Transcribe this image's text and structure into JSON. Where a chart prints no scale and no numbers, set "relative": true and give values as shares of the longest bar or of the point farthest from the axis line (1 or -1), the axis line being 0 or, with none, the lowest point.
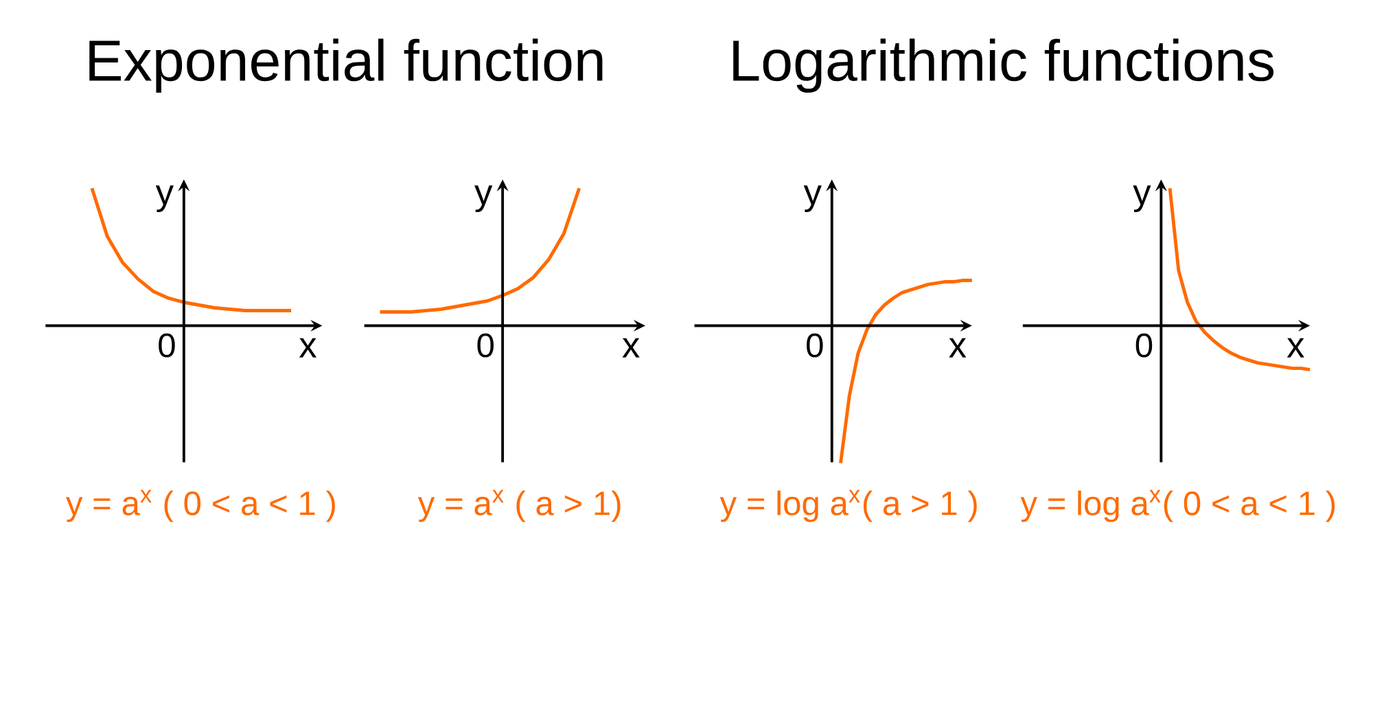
{
  "chart_data": [
    {
      "type": "line",
      "title": "Exponential function",
      "xlabel": "x",
      "ylabel": "y",
      "relative": true,
      "color": "#ff6a00",
      "categories": [
        null,
        null,
        null,
        null,
        null,
        null,
        null,
        null,
        null,
        null,
        null,
        null,
        null,
        null
      ],
      "values": [
        1,
        0.65,
        0.46,
        0.34,
        0.25,
        0.2,
        0.17,
        0.15,
        0.13,
        0.12,
        0.11,
        0.11,
        0.11,
        0.11
      ],
      "annotations": [
        "0",
        "y = a$^{x}$ ( 0 < a < 1 )"
      ]
    },
    {
      "type": "line",
      "xlabel": "x",
      "ylabel": "y",
      "relative": true,
      "color": "#ff6a00",
      "categories": [
        null,
        null,
        null,
        null,
        null,
        null,
        null,
        null,
        null,
        null,
        null,
        null,
        null,
        null
      ],
      "values": [
        0.1,
        0.1,
        0.1,
        0.11,
        0.12,
        0.14,
        0.16,
        0.18,
        0.22,
        0.27,
        0.35,
        0.48,
        0.67,
        1
      ],
      "annotations": [
        "0",
        "y = a$^{x}$ ( a > 1)"
      ]
    },
    {
      "type": "line",
      "title": "Logarithmic functions",
      "xlabel": "x",
      "ylabel": "y",
      "relative": true,
      "color": "#ff6a00",
      "categories": [
        null,
        null,
        null,
        null,
        null,
        null,
        null,
        null,
        null,
        null,
        null,
        null,
        null,
        null,
        null,
        null
      ],
      "values": [
        -1,
        -0.51,
        -0.2,
        -0.03,
        0.08,
        0.15,
        0.2,
        0.24,
        0.26,
        0.28,
        0.3,
        0.31,
        0.32,
        0.32,
        0.33,
        0.33
      ],
      "annotations": [
        "0",
        "y = log a$^{x}$( a > 1 )"
      ]
    },
    {
      "type": "line",
      "xlabel": "x",
      "ylabel": "y",
      "relative": true,
      "color": "#ff6a00",
      "categories": [
        null,
        null,
        null,
        null,
        null,
        null,
        null,
        null,
        null,
        null,
        null,
        null,
        null,
        null,
        null,
        null,
        null
      ],
      "values": [
        1,
        0.4,
        0.17,
        0.03,
        -0.05,
        -0.11,
        -0.16,
        -0.2,
        -0.23,
        -0.25,
        -0.27,
        -0.28,
        -0.29,
        -0.3,
        -0.31,
        -0.31,
        -0.32
      ],
      "annotations": [
        "0",
        "y = log a$^{x}$( 0 < a < 1 )"
      ]
    }
  ]
}
